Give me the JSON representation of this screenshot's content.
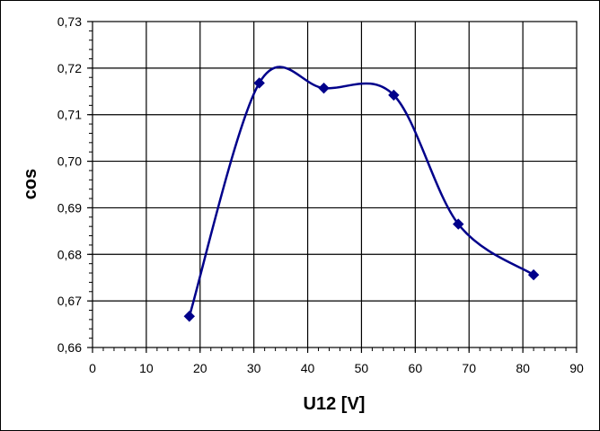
{
  "chart_data": {
    "type": "scatter",
    "xlabel": "U12 [V]",
    "ylabel": "cos",
    "xlim": [
      0,
      90
    ],
    "ylim": [
      0.66,
      0.73
    ],
    "x_ticks": [
      "0",
      "10",
      "20",
      "30",
      "40",
      "50",
      "60",
      "70",
      "80",
      "90"
    ],
    "y_ticks": [
      "0,66",
      "0,67",
      "0,68",
      "0,69",
      "0,70",
      "0,71",
      "0,72",
      "0,73"
    ],
    "grid": true,
    "smooth_line": true,
    "series": [
      {
        "color": "#00008b",
        "marker": "diamond",
        "x": [
          18,
          31,
          43,
          56,
          68,
          82
        ],
        "y": [
          0.6667,
          0.7168,
          0.7157,
          0.7142,
          0.6865,
          0.6756
        ]
      }
    ]
  }
}
